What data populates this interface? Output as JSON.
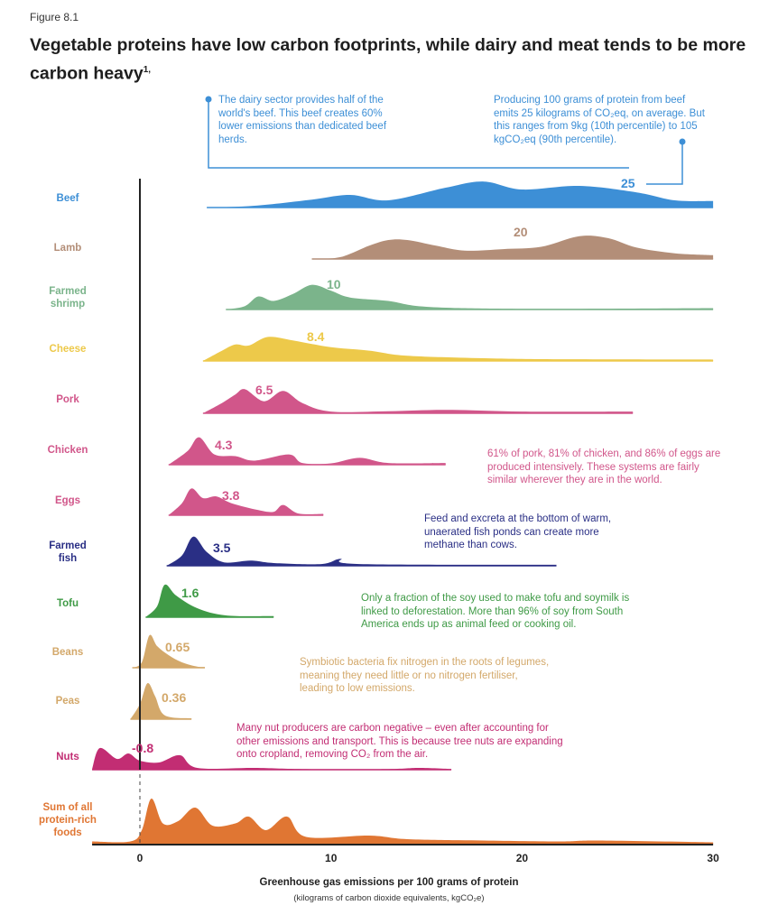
{
  "figure_label": "Figure 8.1",
  "title": "Vegetable proteins have low carbon footprints, while dairy and meat tends to be more carbon heavy",
  "title_footnote": "1,",
  "annotations": {
    "dairy": "The dairy sector provides half of the world's beef. This beef creates 60% lower emissions than dedicated beef herds.",
    "beef_range": "Producing 100 grams of protein from beef emits 25 kilograms of CO₂eq, on average. But this ranges from 9kg (10th percentile) to 105 kgCO₂eq (90th percentile).",
    "intensive": "61% of pork, 81% of chicken, and 86% of eggs are produced intensively. These systems are fairly similar wherever they are in the world.",
    "fish": "Feed and excreta at the bottom of warm, unaerated fish ponds can create more methane than cows.",
    "tofu": "Only a fraction of the soy used to make tofu and soymilk is linked to deforestation. More than 96% of soy from South America ends up as animal feed or cooking oil.",
    "legumes": "Symbiotic bacteria fix nitrogen in the roots of legumes, meaning they need little or no nitrogen fertiliser, leading to low emissions.",
    "nuts": "Many nut producers are carbon negative – even after accounting for other emissions and transport. This is because tree nuts are expanding onto cropland, removing CO₂ from the air."
  },
  "colors": {
    "beef": "#3d8fd6",
    "lamb": "#b38e78",
    "shrimp": "#7bb48b",
    "cheese": "#edc94a",
    "pork": "#d1568a",
    "chicken": "#d1568a",
    "eggs": "#d1568a",
    "fish": "#2a2f85",
    "tofu": "#3f9a46",
    "beans": "#d3a86a",
    "peas": "#d3a86a",
    "nuts": "#c22d73",
    "sum": "#e07633",
    "axis": "#222222"
  },
  "chart_data": {
    "type": "area",
    "title": "Vegetable proteins have low carbon footprints, while dairy and meat tends to be more carbon heavy",
    "xlabel": "Greenhouse gas emissions per 100 grams of protein",
    "xlabel_sub": "(kilograms of carbon dioxide equivalents, kgCO₂e)",
    "xlim": [
      -2.5,
      30
    ],
    "xticks": [
      0,
      10,
      20,
      30
    ],
    "xtick_labels": [
      "0",
      "10",
      "20",
      "30"
    ],
    "grid": false,
    "series": [
      {
        "key": "beef",
        "name": "Beef",
        "label_lines": [
          "Beef"
        ],
        "mean": 25,
        "mean_label": "25",
        "density": [
          [
            3.5,
            0
          ],
          [
            6,
            0.05
          ],
          [
            9,
            0.22
          ],
          [
            11,
            0.35
          ],
          [
            13,
            0.2
          ],
          [
            16,
            0.55
          ],
          [
            18,
            0.72
          ],
          [
            20,
            0.5
          ],
          [
            23,
            0.6
          ],
          [
            26,
            0.42
          ],
          [
            28,
            0.2
          ],
          [
            30,
            0.18
          ]
        ]
      },
      {
        "key": "lamb",
        "name": "Lamb",
        "label_lines": [
          "Lamb"
        ],
        "mean": 20,
        "mean_label": "20",
        "density": [
          [
            9,
            0
          ],
          [
            10.5,
            0.05
          ],
          [
            12,
            0.35
          ],
          [
            13,
            0.5
          ],
          [
            14,
            0.5
          ],
          [
            15.5,
            0.35
          ],
          [
            17,
            0.22
          ],
          [
            19,
            0.26
          ],
          [
            21,
            0.32
          ],
          [
            23,
            0.6
          ],
          [
            24.5,
            0.55
          ],
          [
            26,
            0.3
          ],
          [
            28,
            0.15
          ],
          [
            30,
            0.1
          ]
        ]
      },
      {
        "key": "shrimp",
        "name": "Farmed shrimp",
        "label_lines": [
          "Farmed",
          "shrimp"
        ],
        "mean": 10,
        "mean_label": "10",
        "density": [
          [
            4.5,
            0
          ],
          [
            5.5,
            0.1
          ],
          [
            6.2,
            0.38
          ],
          [
            7,
            0.25
          ],
          [
            8,
            0.45
          ],
          [
            9,
            0.72
          ],
          [
            10,
            0.55
          ],
          [
            11,
            0.35
          ],
          [
            13,
            0.25
          ],
          [
            15,
            0.08
          ],
          [
            20,
            0.02
          ],
          [
            30,
            0.04
          ]
        ]
      },
      {
        "key": "cheese",
        "name": "Cheese",
        "label_lines": [
          "Cheese"
        ],
        "mean": 8.4,
        "mean_label": "8.4",
        "density": [
          [
            3.3,
            0
          ],
          [
            4.3,
            0.3
          ],
          [
            5,
            0.48
          ],
          [
            5.7,
            0.45
          ],
          [
            6.7,
            0.7
          ],
          [
            8,
            0.6
          ],
          [
            10,
            0.4
          ],
          [
            12,
            0.3
          ],
          [
            14,
            0.15
          ],
          [
            18,
            0.08
          ],
          [
            22,
            0.05
          ],
          [
            30,
            0.04
          ]
        ]
      },
      {
        "key": "pork",
        "name": "Pork",
        "label_lines": [
          "Pork"
        ],
        "mean": 6.5,
        "mean_label": "6.5",
        "density": [
          [
            3.3,
            0
          ],
          [
            4.3,
            0.3
          ],
          [
            5,
            0.55
          ],
          [
            5.5,
            0.7
          ],
          [
            6.5,
            0.35
          ],
          [
            7.5,
            0.65
          ],
          [
            8.5,
            0.3
          ],
          [
            10,
            0.05
          ],
          [
            13,
            0.06
          ],
          [
            16,
            0.1
          ],
          [
            20,
            0.05
          ],
          [
            25.8,
            0.05
          ]
        ]
      },
      {
        "key": "chicken",
        "name": "Chicken",
        "label_lines": [
          "Chicken"
        ],
        "mean": 4.3,
        "mean_label": "4.3",
        "density": [
          [
            1.5,
            0
          ],
          [
            2.5,
            0.4
          ],
          [
            3.1,
            0.8
          ],
          [
            3.9,
            0.3
          ],
          [
            5,
            0.25
          ],
          [
            6,
            0.12
          ],
          [
            7.8,
            0.3
          ],
          [
            8.5,
            0.05
          ],
          [
            10,
            0.04
          ],
          [
            11.5,
            0.2
          ],
          [
            13,
            0.05
          ],
          [
            16,
            0.05
          ]
        ]
      },
      {
        "key": "eggs",
        "name": "Eggs",
        "label_lines": [
          "Eggs"
        ],
        "mean": 3.8,
        "mean_label": "3.8",
        "density": [
          [
            1.5,
            0
          ],
          [
            2.2,
            0.35
          ],
          [
            2.7,
            0.78
          ],
          [
            3.3,
            0.5
          ],
          [
            4,
            0.55
          ],
          [
            4.8,
            0.35
          ],
          [
            6.2,
            0.15
          ],
          [
            7,
            0.1
          ],
          [
            7.5,
            0.3
          ],
          [
            8.3,
            0.05
          ],
          [
            9.6,
            0.04
          ]
        ]
      },
      {
        "key": "fish",
        "name": "Farmed fish",
        "label_lines": [
          "Farmed",
          "fish"
        ],
        "mean": 3.5,
        "mean_label": "3.5",
        "density": [
          [
            1.4,
            0
          ],
          [
            2.2,
            0.3
          ],
          [
            2.8,
            0.85
          ],
          [
            3.5,
            0.4
          ],
          [
            4.4,
            0.1
          ],
          [
            5.8,
            0.15
          ],
          [
            7,
            0.08
          ],
          [
            9.5,
            0.05
          ],
          [
            10.5,
            0.2
          ],
          [
            11.5,
            0.05
          ],
          [
            21.8,
            0.03
          ]
        ]
      },
      {
        "key": "tofu",
        "name": "Tofu",
        "label_lines": [
          "Tofu"
        ],
        "mean": 1.6,
        "mean_label": "1.6",
        "density": [
          [
            0.3,
            0
          ],
          [
            0.9,
            0.3
          ],
          [
            1.3,
            0.9
          ],
          [
            1.9,
            0.6
          ],
          [
            3,
            0.25
          ],
          [
            4.5,
            0.05
          ],
          [
            7,
            0.03
          ]
        ]
      },
      {
        "key": "beans",
        "name": "Beans",
        "label_lines": [
          "Beans"
        ],
        "mean": 0.65,
        "mean_label": "0.65",
        "density": [
          [
            -0.4,
            0
          ],
          [
            0.1,
            0.15
          ],
          [
            0.5,
            0.9
          ],
          [
            0.9,
            0.6
          ],
          [
            1.5,
            0.35
          ],
          [
            2.2,
            0.15
          ],
          [
            3,
            0.03
          ],
          [
            3.4,
            0.02
          ]
        ]
      },
      {
        "key": "peas",
        "name": "Peas",
        "label_lines": [
          "Peas"
        ],
        "mean": 0.36,
        "mean_label": "0.36",
        "density": [
          [
            -0.5,
            0
          ],
          [
            0,
            0.4
          ],
          [
            0.4,
            0.95
          ],
          [
            0.8,
            0.6
          ],
          [
            1.3,
            0.1
          ],
          [
            2.7,
            0.02
          ]
        ]
      },
      {
        "key": "nuts",
        "name": "Nuts",
        "label_lines": [
          "Nuts"
        ],
        "mean": -0.8,
        "mean_label": "-0.8",
        "density": [
          [
            -2.5,
            0.02
          ],
          [
            -2.1,
            0.6
          ],
          [
            -1.2,
            0.3
          ],
          [
            -0.6,
            0.45
          ],
          [
            0,
            0.25
          ],
          [
            1,
            0.2
          ],
          [
            2.1,
            0.4
          ],
          [
            3,
            0.05
          ],
          [
            6,
            0.05
          ],
          [
            8.5,
            0.02
          ],
          [
            13,
            0.02
          ],
          [
            14.6,
            0.05
          ],
          [
            16.3,
            0.02
          ]
        ]
      },
      {
        "key": "sum",
        "name": "Sum of all protein-rich foods",
        "label_lines": [
          "Sum of all",
          "protein-rich",
          "foods"
        ],
        "mean": null,
        "mean_label": "",
        "density": [
          [
            -2.5,
            0.05
          ],
          [
            -0.5,
            0.05
          ],
          [
            0.1,
            0.3
          ],
          [
            0.6,
            1.0
          ],
          [
            1.2,
            0.45
          ],
          [
            2,
            0.5
          ],
          [
            2.9,
            0.8
          ],
          [
            3.8,
            0.4
          ],
          [
            5,
            0.45
          ],
          [
            5.7,
            0.6
          ],
          [
            6.6,
            0.3
          ],
          [
            7.7,
            0.6
          ],
          [
            8.7,
            0.15
          ],
          [
            12,
            0.18
          ],
          [
            14,
            0.1
          ],
          [
            18,
            0.07
          ],
          [
            22,
            0.05
          ],
          [
            24,
            0.07
          ],
          [
            30,
            0.03
          ]
        ]
      }
    ]
  }
}
